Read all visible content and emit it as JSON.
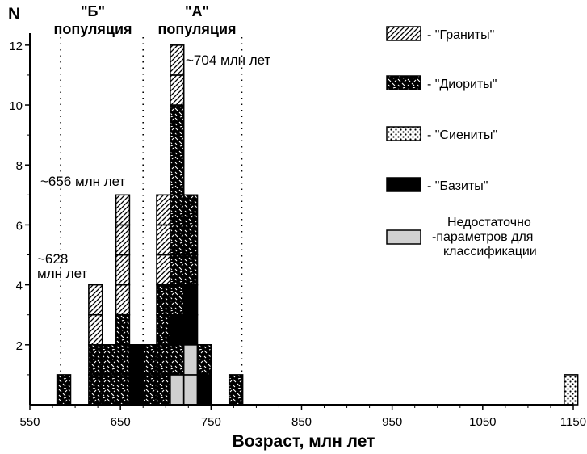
{
  "chart_data": {
    "type": "bar",
    "subtype": "stacked-histogram",
    "xlabel": "Возраст, млн лет",
    "ylabel": "N",
    "xlim": [
      550,
      1150
    ],
    "ylim": [
      0,
      12.4
    ],
    "bin_width": 15,
    "x_ticks": [
      550,
      650,
      750,
      850,
      950,
      1050,
      1150
    ],
    "y_ticks": [
      2,
      4,
      6,
      8,
      10,
      12
    ],
    "legend": [
      {
        "key": "granite",
        "label": "- \"Граниты\""
      },
      {
        "key": "diorite",
        "label": "- \"Диориты\""
      },
      {
        "key": "syenite",
        "label": "- \"Сиениты\""
      },
      {
        "key": "basite",
        "label": "- \"Базиты\""
      },
      {
        "key": "unclassified",
        "label_lines": [
          "Недостаточно",
          "-параметров для",
          "классификации"
        ]
      }
    ],
    "bins": [
      {
        "start": 580,
        "counts": {
          "diorite": 1
        }
      },
      {
        "start": 615,
        "counts": {
          "diorite": 2,
          "granite": 2
        }
      },
      {
        "start": 630,
        "counts": {
          "diorite": 2
        }
      },
      {
        "start": 645,
        "counts": {
          "diorite": 3,
          "granite": 4
        }
      },
      {
        "start": 660,
        "counts": {
          "basite": 2
        }
      },
      {
        "start": 675,
        "counts": {
          "diorite": 2
        }
      },
      {
        "start": 690,
        "counts": {
          "diorite": 4,
          "granite": 3
        }
      },
      {
        "start": 705,
        "counts": {
          "unclassified": 1,
          "diorite": 1,
          "basite": 1,
          "diorite_upper": 7,
          "granite": 2
        }
      },
      {
        "start": 720,
        "counts": {
          "unclassified": 2,
          "basite": 2,
          "diorite": 3
        }
      },
      {
        "start": 735,
        "counts": {
          "basite": 1,
          "diorite": 1
        }
      },
      {
        "start": 770,
        "counts": {
          "diorite": 1
        }
      },
      {
        "start": 1140,
        "counts": {
          "syenite": 1
        }
      }
    ],
    "reference_lines": [
      {
        "x": 584,
        "label_lines": [
          "~628",
          "млн лет"
        ]
      },
      {
        "x": 675,
        "label_lines": [
          "~656 млн лет"
        ]
      },
      {
        "x": 784,
        "label_lines": [
          "~704 млн лет"
        ]
      }
    ],
    "populations": [
      {
        "name": "\"Б\"",
        "sub": "популяция"
      },
      {
        "name": "\"А\"",
        "sub": "популяция"
      }
    ]
  }
}
